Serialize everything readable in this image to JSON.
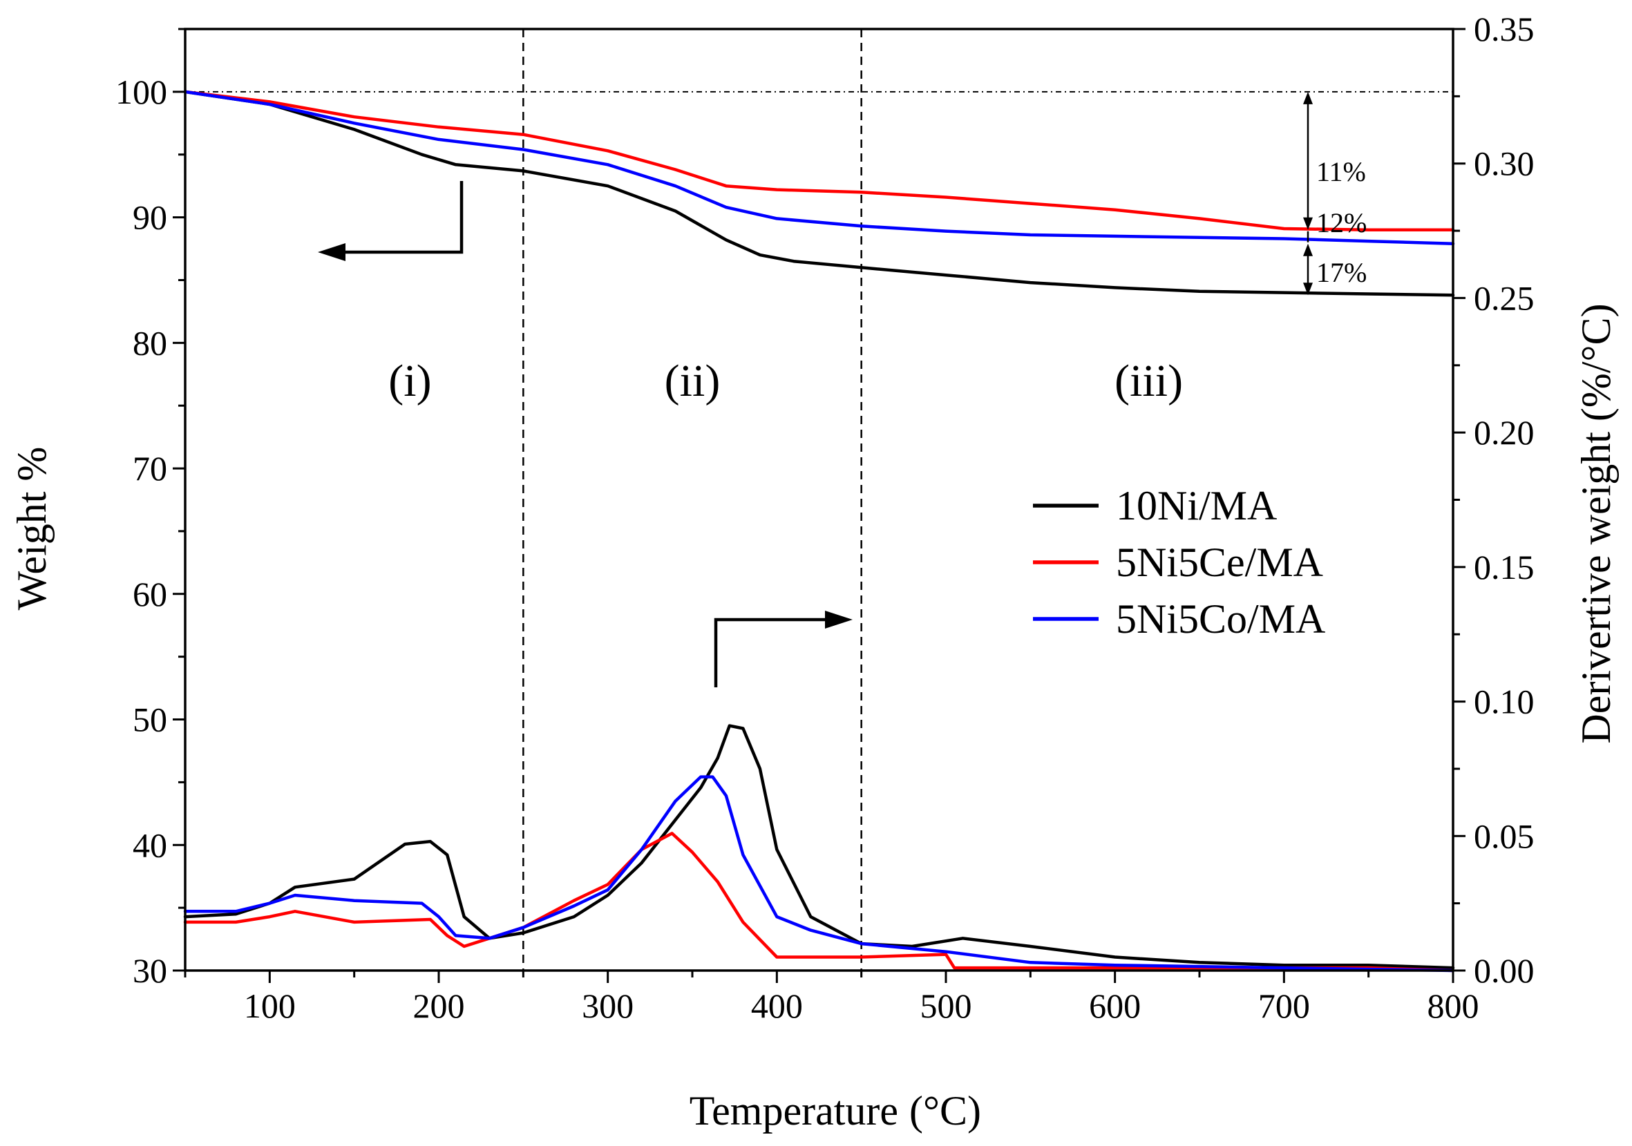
{
  "chart_data": {
    "type": "line",
    "title": "",
    "xlabel": "Temperature",
    "xlabel_unit": "(°C)",
    "ylabel_left": "Weight  %",
    "ylabel_right": "Derivertive weight (%/°C)",
    "xlim": [
      50,
      800
    ],
    "ylim_left": [
      30,
      105
    ],
    "ylim_right": [
      0.0,
      0.35
    ],
    "x_ticks": [
      100,
      200,
      300,
      400,
      500,
      600,
      700,
      800
    ],
    "x_tick_labels": [
      "100",
      "200",
      "300",
      "400",
      "500",
      "600",
      "700",
      "800"
    ],
    "y_left_ticks": [
      30,
      40,
      50,
      60,
      70,
      80,
      90,
      100
    ],
    "y_left_tick_labels": [
      "30",
      "40",
      "50",
      "60",
      "70",
      "80",
      "90",
      "100"
    ],
    "y_right_ticks": [
      0.0,
      0.05,
      0.1,
      0.15,
      0.2,
      0.25,
      0.3,
      0.35
    ],
    "y_right_tick_labels": [
      "0.00",
      "0.05",
      "0.10",
      "0.15",
      "0.20",
      "0.25",
      "0.30",
      "0.35"
    ],
    "regions": [
      {
        "label": "(i)",
        "x_center": 183
      },
      {
        "label": "(ii)",
        "x_center": 350
      },
      {
        "label": "(iii)",
        "x_center": 620
      }
    ],
    "divider_x": [
      250,
      450
    ],
    "reference_line_weight": 100,
    "weight_loss_labels": [
      "11%",
      "12%",
      "17%"
    ],
    "legend": [
      {
        "name": "10Ni/MA",
        "color": "#000000"
      },
      {
        "name": "5Ni5Ce/MA",
        "color": "#ff0000"
      },
      {
        "name": "5Ni5Co/MA",
        "color": "#0000ff"
      }
    ],
    "series": [
      {
        "name": "10Ni/MA",
        "axis": "left",
        "kind": "TG",
        "color": "#000000",
        "x": [
          50,
          100,
          150,
          190,
          210,
          250,
          300,
          340,
          370,
          390,
          410,
          450,
          500,
          550,
          600,
          650,
          700,
          750,
          800
        ],
        "y": [
          100,
          99,
          97,
          95,
          94.2,
          93.7,
          92.5,
          90.5,
          88.2,
          87,
          86.5,
          86,
          85.4,
          84.8,
          84.4,
          84.1,
          84.0,
          83.9,
          83.8
        ]
      },
      {
        "name": "5Ni5Ce/MA",
        "axis": "left",
        "kind": "TG",
        "color": "#ff0000",
        "x": [
          50,
          100,
          150,
          200,
          250,
          300,
          340,
          370,
          400,
          450,
          500,
          550,
          600,
          650,
          700,
          750,
          800
        ],
        "y": [
          100,
          99.2,
          98,
          97.2,
          96.6,
          95.3,
          93.8,
          92.5,
          92.2,
          92.0,
          91.6,
          91.1,
          90.6,
          89.9,
          89.1,
          89.0,
          89.0
        ]
      },
      {
        "name": "5Ni5Co/MA",
        "axis": "left",
        "kind": "TG",
        "color": "#0000ff",
        "x": [
          50,
          100,
          150,
          200,
          250,
          300,
          340,
          370,
          400,
          450,
          500,
          550,
          600,
          650,
          700,
          750,
          800
        ],
        "y": [
          100,
          99,
          97.5,
          96.2,
          95.4,
          94.2,
          92.5,
          90.8,
          89.9,
          89.3,
          88.9,
          88.6,
          88.5,
          88.4,
          88.3,
          88.1,
          87.9
        ]
      },
      {
        "name": "10Ni/MA",
        "axis": "right",
        "kind": "DTG",
        "color": "#000000",
        "x": [
          50,
          80,
          100,
          115,
          150,
          180,
          195,
          205,
          215,
          230,
          250,
          280,
          300,
          320,
          340,
          355,
          365,
          372,
          380,
          390,
          400,
          420,
          450,
          480,
          510,
          550,
          600,
          650,
          700,
          750,
          800
        ],
        "y": [
          0.02,
          0.021,
          0.025,
          0.031,
          0.034,
          0.047,
          0.048,
          0.043,
          0.02,
          0.012,
          0.014,
          0.02,
          0.028,
          0.04,
          0.056,
          0.068,
          0.079,
          0.091,
          0.09,
          0.075,
          0.045,
          0.02,
          0.01,
          0.009,
          0.012,
          0.009,
          0.005,
          0.003,
          0.002,
          0.002,
          0.001
        ]
      },
      {
        "name": "5Ni5Ce/MA",
        "axis": "right",
        "kind": "DTG",
        "color": "#ff0000",
        "x": [
          50,
          80,
          100,
          115,
          150,
          195,
          205,
          215,
          230,
          250,
          280,
          300,
          320,
          338,
          350,
          365,
          380,
          400,
          450,
          500,
          505,
          600,
          700,
          750,
          800
        ],
        "y": [
          0.018,
          0.018,
          0.02,
          0.022,
          0.018,
          0.019,
          0.013,
          0.009,
          0.012,
          0.016,
          0.026,
          0.032,
          0.045,
          0.051,
          0.044,
          0.033,
          0.018,
          0.005,
          0.005,
          0.006,
          0.001,
          0.001,
          0.001,
          0.001,
          0.0
        ]
      },
      {
        "name": "5Ni5Co/MA",
        "axis": "right",
        "kind": "DTG",
        "color": "#0000ff",
        "x": [
          50,
          80,
          100,
          115,
          150,
          190,
          200,
          210,
          230,
          250,
          280,
          300,
          320,
          340,
          355,
          362,
          370,
          380,
          400,
          420,
          450,
          500,
          550,
          600,
          700,
          800
        ],
        "y": [
          0.022,
          0.022,
          0.025,
          0.028,
          0.026,
          0.025,
          0.02,
          0.013,
          0.012,
          0.016,
          0.024,
          0.03,
          0.045,
          0.063,
          0.072,
          0.072,
          0.065,
          0.043,
          0.02,
          0.015,
          0.01,
          0.007,
          0.003,
          0.002,
          0.001,
          0.0
        ]
      }
    ]
  }
}
